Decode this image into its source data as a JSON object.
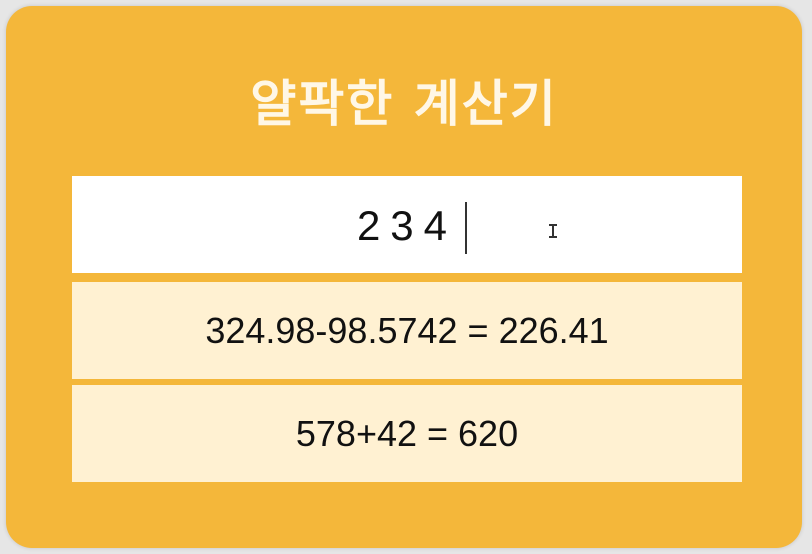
{
  "app": {
    "title": "얄팍한 계산기"
  },
  "input": {
    "value": "234"
  },
  "history": [
    {
      "expression": "324.98-98.5742 = 226.41"
    },
    {
      "expression": "578+42 = 620"
    }
  ],
  "colors": {
    "card_background": "#f4b73a",
    "title_text": "#fff7e6",
    "input_background": "#ffffff",
    "history_background": "#fff1d2"
  },
  "icons": {
    "text_cursor": "i-beam-cursor-icon"
  }
}
